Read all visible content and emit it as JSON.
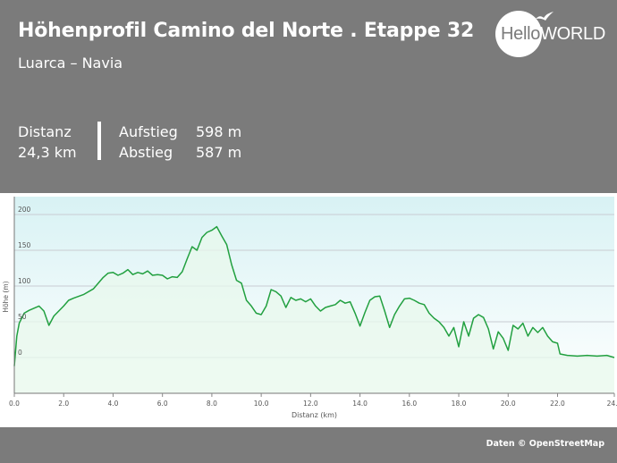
{
  "header": {
    "title": "Höhenprofil Camino del Norte . Etappe 32",
    "subtitle": "Luarca – Navia"
  },
  "stats": {
    "distance_label": "Distanz",
    "distance_value": "24,3 km",
    "ascent_label": "Aufstieg",
    "ascent_value": "598 m",
    "descent_label": "Abstieg",
    "descent_value": "587 m"
  },
  "logo": {
    "part1": "Hello",
    "part2": "WORLD"
  },
  "footer": {
    "credit": "Daten © OpenStreetMap"
  },
  "colors": {
    "header_bg": "#7b7b7b",
    "line": "#22a040",
    "fill_top": "#d8f2f4",
    "fill_bottom": "#e8f8ec",
    "grid": "#c8ccd2"
  },
  "chart_data": {
    "type": "area",
    "xlabel": "Distanz  (km)",
    "ylabel": "Höhe (m)",
    "xlim": [
      0,
      24.3
    ],
    "ylim": [
      -50,
      225
    ],
    "x_ticks": [
      "0.0",
      "2.0",
      "4.0",
      "6.0",
      "8.0",
      "10.0",
      "12.0",
      "14.0",
      "16.0",
      "18.0",
      "20.0",
      "22.0",
      "24.3"
    ],
    "x_tick_values": [
      0,
      2,
      4,
      6,
      8,
      10,
      12,
      14,
      16,
      18,
      20,
      22,
      24.3
    ],
    "y_ticks": [
      "0",
      "50",
      "100",
      "150",
      "200"
    ],
    "y_tick_values": [
      0,
      50,
      100,
      150,
      200
    ],
    "grid": true,
    "series": [
      {
        "x": [
          0,
          0.1,
          0.2,
          0.4,
          0.6,
          1.0,
          1.2,
          1.4,
          1.6,
          2.0,
          2.2,
          2.4,
          2.8,
          3.2,
          3.6,
          3.8,
          4.0,
          4.2,
          4.4,
          4.6,
          4.8,
          5.0,
          5.2,
          5.4,
          5.6,
          5.8,
          6.0,
          6.2,
          6.4,
          6.6,
          6.8,
          7.0,
          7.2,
          7.4,
          7.6,
          7.8,
          8.0,
          8.2,
          8.4,
          8.6,
          8.8,
          9.0,
          9.2,
          9.4,
          9.6,
          9.8,
          10.0,
          10.2,
          10.4,
          10.6,
          10.8,
          11.0,
          11.2,
          11.4,
          11.6,
          11.8,
          12.0,
          12.2,
          12.4,
          12.6,
          12.8,
          13.0,
          13.2,
          13.4,
          13.6,
          13.8,
          14.0,
          14.2,
          14.4,
          14.6,
          14.8,
          15.0,
          15.2,
          15.4,
          15.6,
          15.8,
          16.0,
          16.2,
          16.4,
          16.6,
          16.8,
          17.0,
          17.2,
          17.4,
          17.6,
          17.8,
          18.0,
          18.2,
          18.4,
          18.6,
          18.8,
          19.0,
          19.2,
          19.4,
          19.6,
          19.8,
          20.0,
          20.2,
          20.4,
          20.6,
          20.8,
          21.0,
          21.2,
          21.4,
          21.6,
          21.8,
          22.0,
          22.1,
          22.4,
          22.8,
          23.2,
          23.6,
          24.0,
          24.3
        ],
        "y": [
          -12,
          30,
          48,
          62,
          66,
          72,
          65,
          45,
          58,
          72,
          80,
          83,
          88,
          96,
          112,
          118,
          119,
          115,
          118,
          123,
          116,
          119,
          117,
          121,
          115,
          116,
          115,
          110,
          113,
          112,
          120,
          138,
          155,
          150,
          168,
          175,
          178,
          183,
          170,
          158,
          130,
          108,
          104,
          80,
          72,
          62,
          60,
          72,
          95,
          92,
          86,
          70,
          84,
          80,
          82,
          78,
          82,
          72,
          65,
          70,
          72,
          74,
          80,
          76,
          78,
          62,
          44,
          63,
          80,
          85,
          86,
          65,
          42,
          60,
          72,
          82,
          83,
          80,
          76,
          74,
          62,
          55,
          50,
          42,
          30,
          42,
          15,
          50,
          30,
          55,
          60,
          56,
          40,
          12,
          36,
          27,
          10,
          45,
          40,
          48,
          30,
          42,
          35,
          42,
          30,
          22,
          20,
          5,
          3,
          2,
          3,
          2,
          3,
          0
        ]
      }
    ]
  }
}
